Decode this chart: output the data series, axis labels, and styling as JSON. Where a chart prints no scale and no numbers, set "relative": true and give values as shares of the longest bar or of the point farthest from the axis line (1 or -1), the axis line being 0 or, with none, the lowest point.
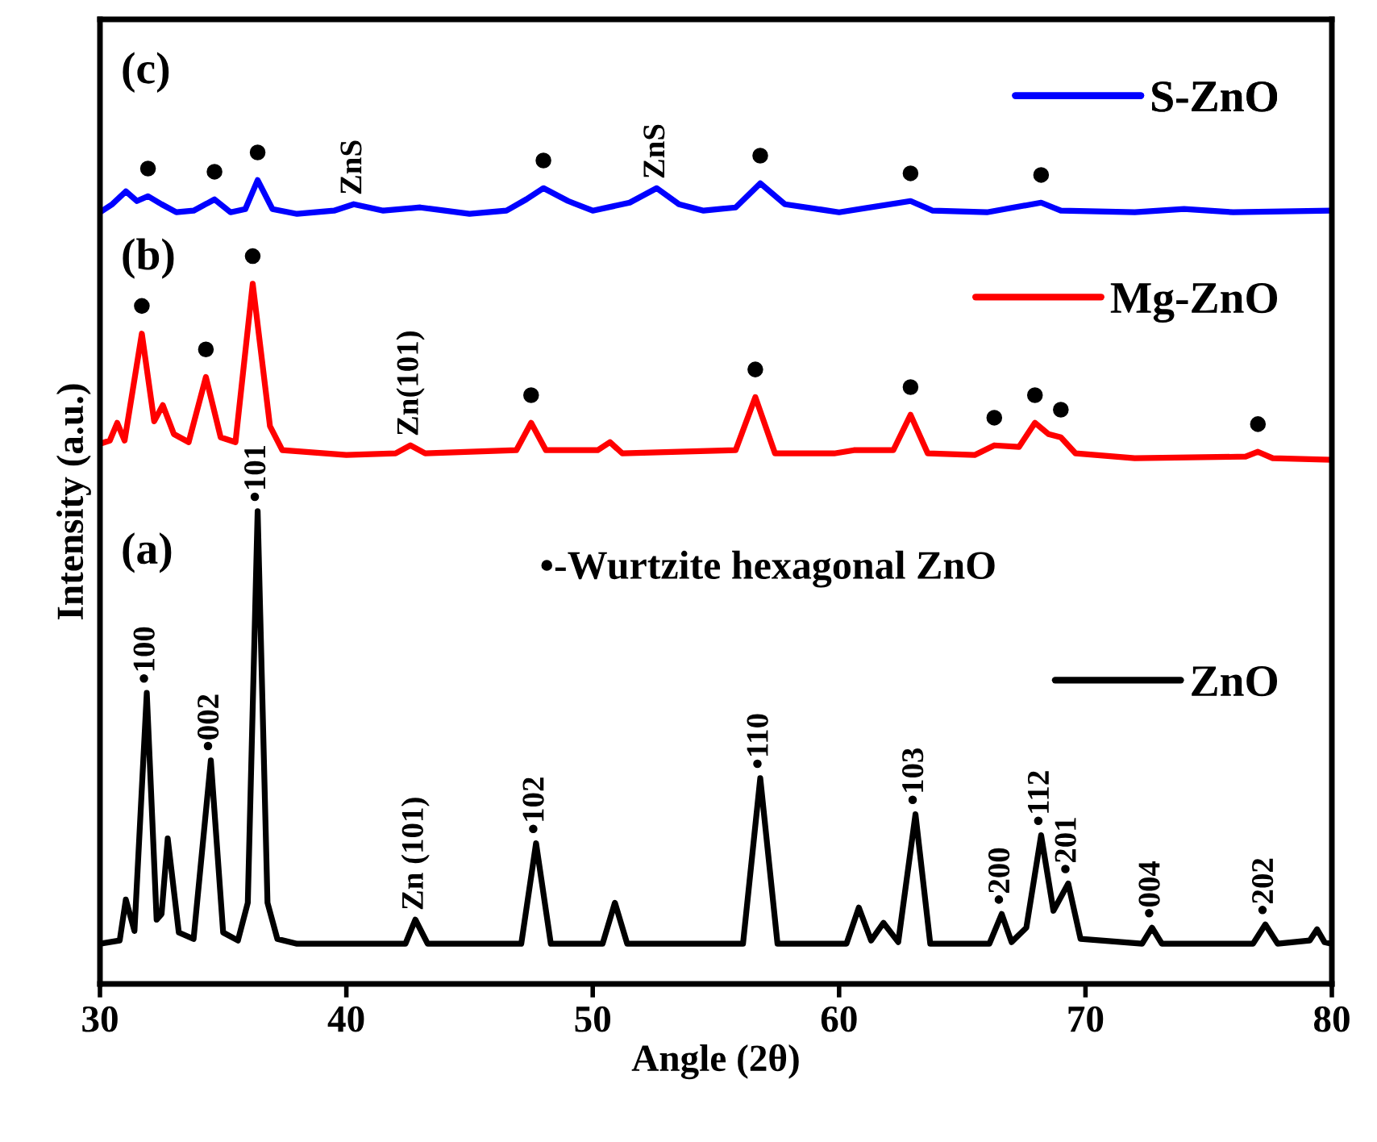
{
  "chart_data": {
    "type": "line",
    "relative": true,
    "xlabel": "Angle (2θ)",
    "ylabel": "Intensity (a.u.)",
    "xlim": [
      30,
      80
    ],
    "xticks": [
      30,
      40,
      50,
      60,
      70,
      80
    ],
    "tick_labels": "x",
    "grid": false,
    "legend": "right",
    "marker": "none",
    "line_style": "solid",
    "series": [
      {
        "name": "ZnO",
        "color": "#000000",
        "x": [
          30.0,
          30.8,
          31.05,
          31.4,
          31.9,
          32.3,
          32.5,
          32.75,
          33.2,
          33.8,
          34.5,
          35.0,
          35.6,
          36.0,
          36.4,
          36.8,
          37.2,
          38.0,
          42.4,
          42.8,
          43.3,
          47.1,
          47.7,
          48.3,
          50.4,
          50.9,
          51.4,
          56.1,
          56.8,
          57.5,
          60.3,
          60.8,
          61.3,
          61.8,
          62.4,
          63.1,
          63.7,
          66.1,
          66.6,
          67.0,
          67.6,
          68.2,
          68.7,
          69.3,
          69.8,
          72.3,
          72.7,
          73.1,
          76.8,
          77.3,
          77.8,
          79.1,
          79.4,
          79.7,
          80.0
        ],
        "values": [
          0.05,
          0.054,
          0.105,
          0.066,
          0.362,
          0.08,
          0.087,
          0.181,
          0.064,
          0.056,
          0.278,
          0.064,
          0.054,
          0.101,
          0.588,
          0.101,
          0.056,
          0.05,
          0.05,
          0.08,
          0.05,
          0.05,
          0.175,
          0.05,
          0.05,
          0.101,
          0.05,
          0.05,
          0.256,
          0.05,
          0.05,
          0.095,
          0.054,
          0.076,
          0.052,
          0.211,
          0.05,
          0.05,
          0.087,
          0.052,
          0.07,
          0.185,
          0.091,
          0.125,
          0.056,
          0.05,
          0.07,
          0.05,
          0.05,
          0.074,
          0.05,
          0.054,
          0.068,
          0.052,
          0.05
        ]
      },
      {
        "name": "Mg-ZnO",
        "color": "#ff0000",
        "x": [
          30.0,
          30.4,
          30.7,
          31.0,
          31.7,
          32.2,
          32.55,
          33.0,
          33.6,
          34.3,
          34.9,
          35.5,
          36.2,
          36.9,
          37.4,
          40.0,
          42.0,
          42.6,
          43.2,
          46.9,
          47.5,
          48.1,
          50.2,
          50.7,
          51.2,
          55.8,
          56.6,
          57.4,
          59.8,
          60.6,
          61.5,
          62.2,
          62.9,
          63.6,
          65.5,
          66.3,
          67.3,
          67.95,
          68.5,
          69.0,
          69.6,
          72.0,
          76.5,
          77.0,
          77.6,
          80.0
        ],
        "values": [
          0.672,
          0.676,
          0.698,
          0.676,
          0.809,
          0.7,
          0.72,
          0.684,
          0.674,
          0.755,
          0.68,
          0.674,
          0.871,
          0.694,
          0.664,
          0.658,
          0.66,
          0.67,
          0.66,
          0.664,
          0.698,
          0.664,
          0.664,
          0.674,
          0.66,
          0.664,
          0.73,
          0.66,
          0.66,
          0.664,
          0.664,
          0.664,
          0.708,
          0.66,
          0.658,
          0.67,
          0.668,
          0.698,
          0.684,
          0.68,
          0.66,
          0.654,
          0.656,
          0.662,
          0.654,
          0.652
        ]
      },
      {
        "name": "S-ZnO",
        "color": "#0000ff",
        "x": [
          30.0,
          30.5,
          31.05,
          31.5,
          31.95,
          32.5,
          33.1,
          33.8,
          34.65,
          35.3,
          35.9,
          36.4,
          37.0,
          38.0,
          39.5,
          40.3,
          41.5,
          43.0,
          45.0,
          46.5,
          47.3,
          48.0,
          49.0,
          50.0,
          51.5,
          52.6,
          53.5,
          54.5,
          55.8,
          56.8,
          57.8,
          60.0,
          62.9,
          63.8,
          66.0,
          68.2,
          69.0,
          72.0,
          74.0,
          76.0,
          80.0
        ],
        "values": [
          0.96,
          0.97,
          0.986,
          0.974,
          0.98,
          0.97,
          0.96,
          0.962,
          0.976,
          0.96,
          0.964,
          1.0,
          0.964,
          0.958,
          0.962,
          0.97,
          0.962,
          0.966,
          0.958,
          0.962,
          0.976,
          0.99,
          0.974,
          0.962,
          0.972,
          0.99,
          0.97,
          0.962,
          0.966,
          0.996,
          0.97,
          0.96,
          0.974,
          0.962,
          0.96,
          0.972,
          0.962,
          0.96,
          0.964,
          0.96,
          0.962
        ]
      }
    ],
    "annotations": [
      "(a)",
      "(b)",
      "(c)",
      "•-Wurtzite hexagonal ZnO",
      {
        "text": "•100",
        "x": 31.9,
        "y": 0.362
      },
      {
        "text": "•002",
        "x": 34.5,
        "y": 0.278
      },
      {
        "text": "•101",
        "x": 36.4,
        "y": 0.588
      },
      {
        "text": "Zn (101)",
        "x": 42.8,
        "y": 0.08
      },
      {
        "text": "•102",
        "x": 47.7,
        "y": 0.175
      },
      {
        "text": "•110",
        "x": 56.8,
        "y": 0.256
      },
      {
        "text": "•103",
        "x": 63.1,
        "y": 0.211
      },
      {
        "text": "•200",
        "x": 66.6,
        "y": 0.087
      },
      {
        "text": "•112",
        "x": 68.2,
        "y": 0.185
      },
      {
        "text": "•201",
        "x": 69.3,
        "y": 0.125
      },
      {
        "text": "•004",
        "x": 72.7,
        "y": 0.07
      },
      {
        "text": "•202",
        "x": 77.3,
        "y": 0.074
      },
      {
        "text": "•",
        "x": 31.7,
        "y": 0.809
      },
      {
        "text": "•",
        "x": 34.3,
        "y": 0.755
      },
      {
        "text": "•",
        "x": 36.2,
        "y": 0.871
      },
      {
        "text": "Zn(101)",
        "x": 42.6,
        "y": 0.67
      },
      {
        "text": "•",
        "x": 47.5,
        "y": 0.698
      },
      {
        "text": "•",
        "x": 56.6,
        "y": 0.73
      },
      {
        "text": "•",
        "x": 62.9,
        "y": 0.708
      },
      {
        "text": "•",
        "x": 66.3,
        "y": 0.67
      },
      {
        "text": "•",
        "x": 67.95,
        "y": 0.698
      },
      {
        "text": "•",
        "x": 69.0,
        "y": 0.68
      },
      {
        "text": "•",
        "x": 77.0,
        "y": 0.662
      },
      {
        "text": "•",
        "x": 31.95,
        "y": 0.98
      },
      {
        "text": "•",
        "x": 34.65,
        "y": 0.976
      },
      {
        "text": "•",
        "x": 36.4,
        "y": 1.0
      },
      {
        "text": "ZnS",
        "x": 40.3,
        "y": 0.97
      },
      {
        "text": "•",
        "x": 48.0,
        "y": 0.99
      },
      {
        "text": "ZnS",
        "x": 52.6,
        "y": 0.99
      },
      {
        "text": "•",
        "x": 56.8,
        "y": 0.996
      },
      {
        "text": "•",
        "x": 62.9,
        "y": 0.974
      },
      {
        "text": "•",
        "x": 68.2,
        "y": 0.972
      }
    ]
  }
}
